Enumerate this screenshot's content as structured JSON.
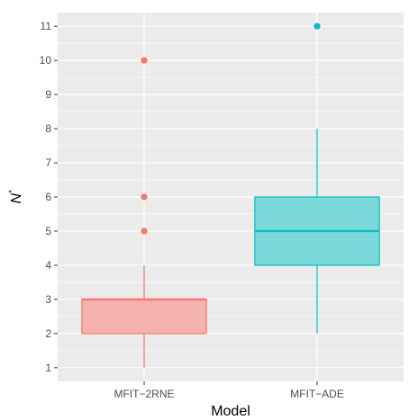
{
  "chart_data": {
    "type": "boxplot",
    "xlabel": "Model",
    "ylabel": "N",
    "ylabel_superscript": "*",
    "ylim": [
      0.6,
      11.4
    ],
    "yticks": [
      1,
      2,
      3,
      4,
      5,
      6,
      7,
      8,
      9,
      10,
      11
    ],
    "grid": true,
    "panel_background": "#ebebeb",
    "grid_color": "#ffffff",
    "categories": [
      "MFIT−2RNE",
      "MFIT−ADE"
    ],
    "series": [
      {
        "category": "MFIT−2RNE",
        "color": "#f8766d",
        "fill": "#f4b2ad",
        "whisker_low": 1,
        "q1": 2,
        "median": 3,
        "q3": 3,
        "whisker_high": 4,
        "outliers": [
          5,
          6,
          10
        ]
      },
      {
        "category": "MFIT−ADE",
        "color": "#00bfc4",
        "fill": "#7ad7da",
        "whisker_low": 2,
        "q1": 4,
        "median": 5,
        "q3": 6,
        "whisker_high": 8,
        "outliers": [
          11
        ]
      }
    ]
  }
}
